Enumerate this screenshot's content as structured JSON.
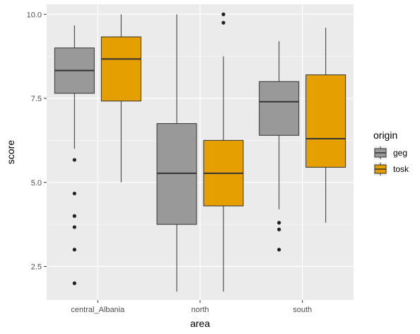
{
  "chart_data": {
    "type": "boxplot",
    "xlabel": "area",
    "ylabel": "score",
    "categories": [
      "central_Albania",
      "north",
      "south"
    ],
    "ylim": [
      1.5,
      10.3
    ],
    "yticks": [
      2.5,
      5.0,
      7.5,
      10.0
    ],
    "ytick_labels": [
      "2.5",
      "5.0",
      "7.5",
      "10.0"
    ],
    "grid": true,
    "legend": {
      "title": "origin",
      "position": "right",
      "entries": [
        "geg",
        "tosk"
      ]
    },
    "series": [
      {
        "name": "geg",
        "color": "#999999",
        "boxes": [
          {
            "category": "central_Albania",
            "whisker_low": 6.0,
            "q1": 7.65,
            "median": 8.33,
            "q3": 9.0,
            "whisker_high": 9.67,
            "outliers": [
              5.67,
              4.67,
              4.0,
              3.67,
              3.0,
              2.0
            ]
          },
          {
            "category": "north",
            "whisker_low": 1.75,
            "q1": 3.75,
            "median": 5.27,
            "q3": 6.75,
            "whisker_high": 10.0,
            "outliers": []
          },
          {
            "category": "south",
            "whisker_low": 4.2,
            "q1": 6.4,
            "median": 7.4,
            "q3": 8.0,
            "whisker_high": 9.2,
            "outliers": [
              3.8,
              3.6,
              3.0
            ]
          }
        ]
      },
      {
        "name": "tosk",
        "color": "#E69F00",
        "boxes": [
          {
            "category": "central_Albania",
            "whisker_low": 5.0,
            "q1": 7.42,
            "median": 8.67,
            "q3": 9.33,
            "whisker_high": 10.0,
            "outliers": []
          },
          {
            "category": "north",
            "whisker_low": 1.75,
            "q1": 4.3,
            "median": 5.27,
            "q3": 6.25,
            "whisker_high": 8.75,
            "outliers": [
              10.0,
              9.75
            ]
          },
          {
            "category": "south",
            "whisker_low": 3.8,
            "q1": 5.45,
            "median": 6.3,
            "q3": 8.2,
            "whisker_high": 9.6,
            "outliers": []
          }
        ]
      }
    ]
  }
}
